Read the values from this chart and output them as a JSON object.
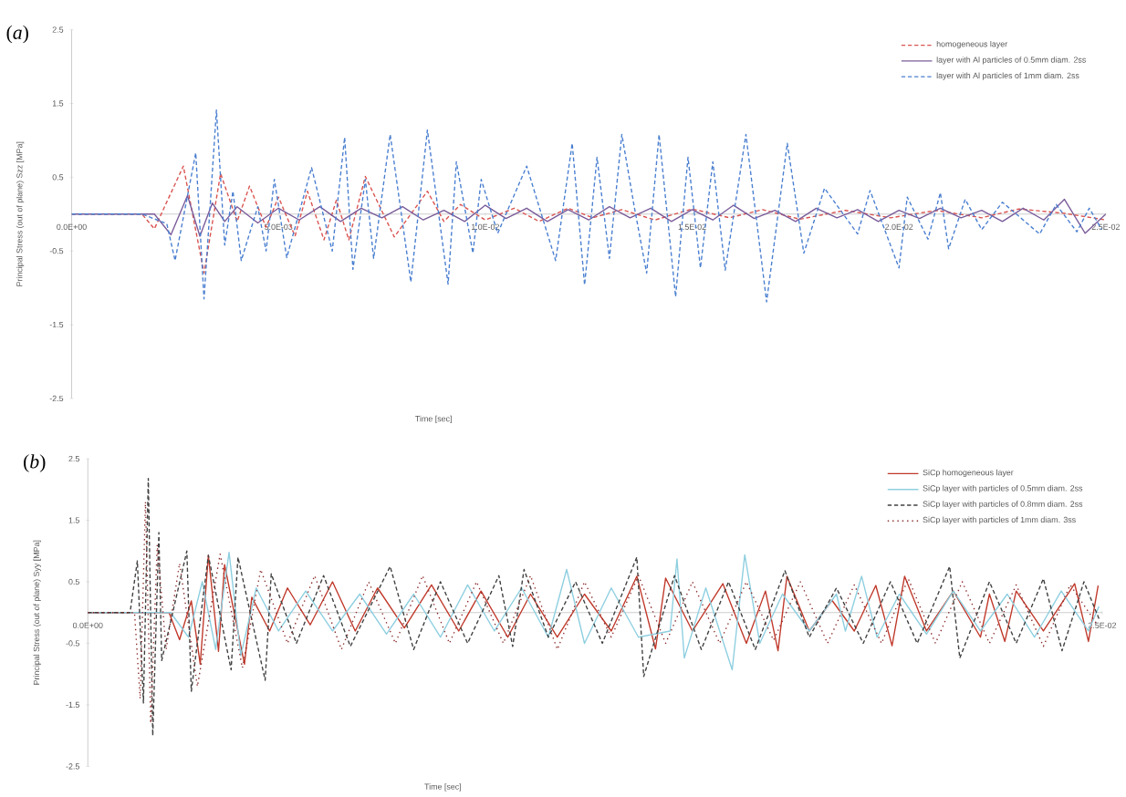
{
  "chart_data": [
    {
      "type": "line",
      "title": "(*a*)",
      "xlabel": "Time [sec]",
      "ylabel": "Principal Stress (out of plane) Szz [MPa]",
      "xlim": [
        0,
        0.025
      ],
      "ylim": [
        -2.5,
        2.5
      ],
      "yticks": [
        -2.5,
        -1.5,
        -0.5,
        0.5,
        1.5,
        2.5
      ],
      "xticks": [
        {
          "value": 0,
          "label": "0.0E+00"
        },
        {
          "value": 0.005,
          "label": "5.0E-03"
        },
        {
          "value": 0.01,
          "label": "1.0E-02"
        },
        {
          "value": 0.015,
          "label": "1.5E-02"
        },
        {
          "value": 0.02,
          "label": "2.0E-02"
        },
        {
          "value": 0.025,
          "label": "2.5E-02"
        }
      ],
      "legend": "top right",
      "series": [
        {
          "name": "homogeneous layer",
          "color": "#d9534f",
          "line_style": "dashed",
          "x": [
            0,
            0.0017,
            0.002,
            0.0027,
            0.0032,
            0.0036,
            0.004,
            0.0043,
            0.0047,
            0.005,
            0.0054,
            0.0057,
            0.0061,
            0.0064,
            0.0067,
            0.0071,
            0.0078,
            0.0086,
            0.009,
            0.0094,
            0.01,
            0.0107,
            0.0113,
            0.012,
            0.0126,
            0.0133,
            0.0141,
            0.015,
            0.0159,
            0.0167,
            0.0176,
            0.0187,
            0.0198,
            0.0209,
            0.022,
            0.0229,
            0.024,
            0.025
          ],
          "values": [
            0,
            0,
            -0.2,
            0.65,
            -0.8,
            0.55,
            -0.1,
            0.38,
            -0.18,
            0.23,
            -0.3,
            0.31,
            -0.35,
            0.19,
            -0.35,
            0.51,
            -0.31,
            0.31,
            -0.1,
            0.13,
            -0.08,
            0.08,
            -0.1,
            0.08,
            -0.05,
            0.06,
            -0.08,
            0.07,
            -0.05,
            0.06,
            -0.07,
            0.05,
            -0.05,
            0.05,
            -0.05,
            0.07,
            0.01,
            -0.08
          ]
        },
        {
          "name": "layer with Al particles of 0.5mm diam. 2ss",
          "color": "#7a5c9a",
          "line_style": "solid",
          "x": [
            0,
            0.002,
            0.0024,
            0.0028,
            0.0031,
            0.0034,
            0.0037,
            0.004,
            0.0045,
            0.005,
            0.0055,
            0.006,
            0.0065,
            0.007,
            0.0075,
            0.008,
            0.0085,
            0.009,
            0.0095,
            0.01,
            0.0105,
            0.011,
            0.0115,
            0.012,
            0.0125,
            0.013,
            0.0135,
            0.014,
            0.0145,
            0.015,
            0.0155,
            0.016,
            0.0165,
            0.017,
            0.0175,
            0.018,
            0.0185,
            0.019,
            0.0195,
            0.02,
            0.0205,
            0.021,
            0.0215,
            0.022,
            0.0225,
            0.023,
            0.0235,
            0.024,
            0.0245,
            0.025
          ],
          "values": [
            0,
            0,
            -0.28,
            0.25,
            -0.3,
            0.15,
            -0.1,
            0.1,
            -0.12,
            0.08,
            -0.08,
            0.1,
            -0.1,
            0.08,
            -0.05,
            0.1,
            -0.08,
            0.05,
            -0.1,
            0.12,
            -0.06,
            0.08,
            -0.1,
            0.06,
            -0.08,
            0.1,
            -0.05,
            0.08,
            -0.1,
            0.06,
            -0.08,
            0.12,
            -0.06,
            0.05,
            -0.1,
            0.08,
            -0.05,
            0.06,
            -0.1,
            0.05,
            -0.06,
            0.08,
            -0.05,
            0.05,
            -0.1,
            0.08,
            -0.08,
            0.2,
            -0.26,
            0
          ]
        },
        {
          "name": "layer with Al particles of 1mm diam. 2ss",
          "color": "#4a7fd0",
          "line_style": "dashed",
          "x": [
            0,
            0.0017,
            0.0023,
            0.0025,
            0.003,
            0.0032,
            0.0035,
            0.0037,
            0.0039,
            0.0041,
            0.0045,
            0.0047,
            0.0049,
            0.0052,
            0.0058,
            0.0063,
            0.0066,
            0.0068,
            0.0071,
            0.0073,
            0.0077,
            0.0082,
            0.0086,
            0.0091,
            0.0093,
            0.0097,
            0.0099,
            0.0103,
            0.011,
            0.0117,
            0.0121,
            0.0124,
            0.0127,
            0.013,
            0.0133,
            0.0136,
            0.0139,
            0.0142,
            0.0146,
            0.0149,
            0.0152,
            0.0155,
            0.0158,
            0.0163,
            0.0168,
            0.0173,
            0.0177,
            0.0182,
            0.019,
            0.0193,
            0.02,
            0.0202,
            0.0207,
            0.021,
            0.0212,
            0.0216,
            0.022,
            0.0225,
            0.0234,
            0.0238,
            0.0243,
            0.0246,
            0.0249
          ],
          "values": [
            0,
            0,
            -0.13,
            -0.63,
            0.83,
            -1.15,
            1.41,
            -0.42,
            0.31,
            -0.63,
            0.1,
            -0.5,
            0.47,
            -0.59,
            0.63,
            -0.5,
            1.04,
            -0.75,
            0.47,
            -0.6,
            1.08,
            -0.92,
            1.14,
            -0.95,
            0.71,
            -0.53,
            0.47,
            -0.26,
            0.65,
            -0.63,
            0.96,
            -0.96,
            0.77,
            -0.6,
            1.08,
            0.1,
            -0.8,
            1.08,
            -1.12,
            0.77,
            -0.73,
            0.71,
            -0.76,
            1.08,
            -1.19,
            0.96,
            -0.53,
            0.35,
            -0.27,
            0.32,
            -0.73,
            0.23,
            -0.34,
            0.29,
            -0.47,
            0.2,
            -0.21,
            0.16,
            -0.27,
            0.13,
            -0.24,
            0.08,
            -0.21
          ]
        }
      ]
    },
    {
      "type": "line",
      "title": "(*b*)",
      "xlabel": "Time [sec]",
      "ylabel": "Principal Stress (out of plane) Syy [MPa]",
      "xlim": [
        0,
        0.025
      ],
      "ylim": [
        -2.5,
        2.5
      ],
      "yticks": [
        -2.5,
        -1.5,
        -0.5,
        0.5,
        1.5,
        2.5
      ],
      "xticks": [
        {
          "value": 0,
          "label": "0.0E+00"
        },
        {
          "value": 0.025,
          "label": "2.5E-02"
        }
      ],
      "legend": "top right",
      "series": [
        {
          "name": "SiCp homogeneous layer",
          "color": "#c0392b",
          "line_style": "solid",
          "x": [
            0,
            0.002,
            0.00226,
            0.00255,
            0.00277,
            0.00297,
            0.00322,
            0.00337,
            0.00386,
            0.00404,
            0.00448,
            0.00492,
            0.00548,
            0.00603,
            0.00659,
            0.00714,
            0.0078,
            0.00847,
            0.00914,
            0.00969,
            0.01035,
            0.01091,
            0.01157,
            0.01224,
            0.0129,
            0.01353,
            0.01399,
            0.01424,
            0.0149,
            0.01565,
            0.01623,
            0.0167,
            0.01701,
            0.01723,
            0.01778,
            0.01834,
            0.01889,
            0.01942,
            0.01982,
            0.02013,
            0.02067,
            0.02133,
            0.022,
            0.02222,
            0.0226,
            0.02288,
            0.02355,
            0.02432,
            0.02466,
            0.0249
          ],
          "values": [
            0,
            0,
            -0.44,
            0.19,
            -0.84,
            0.93,
            -0.63,
            0.78,
            -0.84,
            0.25,
            -0.3,
            0.4,
            -0.2,
            0.5,
            -0.3,
            0.4,
            -0.25,
            0.45,
            -0.3,
            0.35,
            -0.4,
            0.3,
            -0.4,
            0.3,
            -0.3,
            0.59,
            -0.59,
            0.56,
            -0.3,
            0.47,
            -0.5,
            0.35,
            -0.62,
            0.59,
            -0.3,
            0.2,
            -0.3,
            0.44,
            -0.54,
            0.59,
            -0.3,
            0.35,
            -0.4,
            0.3,
            -0.47,
            0.35,
            -0.3,
            0.47,
            -0.47,
            0.44
          ]
        },
        {
          "name": "SiCp layer with particles of 0.5mm diam. 2ss",
          "color": "#8ecfe0",
          "line_style": "solid",
          "x": [
            0,
            0.00204,
            0.00248,
            0.00282,
            0.00315,
            0.00348,
            0.00377,
            0.00415,
            0.0047,
            0.00537,
            0.00603,
            0.0067,
            0.00736,
            0.00803,
            0.00869,
            0.00936,
            0.01002,
            0.01069,
            0.01135,
            0.0118,
            0.01224,
            0.0129,
            0.01357,
            0.01435,
            0.01452,
            0.0147,
            0.01523,
            0.01588,
            0.01619,
            0.01656,
            0.01712,
            0.01778,
            0.01845,
            0.01867,
            0.01907,
            0.01945,
            0.02,
            0.02067,
            0.02133,
            0.022,
            0.02266,
            0.02333,
            0.02399,
            0.02466,
            0.02492
          ],
          "values": [
            0,
            0,
            -0.4,
            0.5,
            -0.6,
            0.98,
            -0.7,
            0.4,
            -0.3,
            0.35,
            -0.3,
            0.3,
            -0.35,
            0.3,
            -0.4,
            0.45,
            -0.3,
            0.4,
            -0.4,
            0.7,
            -0.5,
            0.4,
            -0.4,
            -0.3,
            0.87,
            -0.74,
            0.4,
            -0.93,
            0.94,
            -0.5,
            0.3,
            -0.3,
            0.3,
            -0.3,
            0.59,
            -0.4,
            0.3,
            -0.35,
            0.35,
            -0.3,
            0.3,
            -0.4,
            0.35,
            -0.3,
            0.1
          ]
        },
        {
          "name": "SiCp layer with particles of 0.8mm diam. 2ss",
          "color": "#404040",
          "line_style": "dashed",
          "x": [
            0,
            0.00104,
            0.00122,
            0.00137,
            0.00149,
            0.0016,
            0.00175,
            0.00182,
            0.00244,
            0.00255,
            0.00297,
            0.00353,
            0.0037,
            0.00437,
            0.00452,
            0.00514,
            0.00581,
            0.00647,
            0.00745,
            0.00803,
            0.00869,
            0.00936,
            0.01013,
            0.01047,
            0.01075,
            0.01135,
            0.01202,
            0.01268,
            0.01353,
            0.0137,
            0.01446,
            0.01512,
            0.01579,
            0.01645,
            0.01718,
            0.01778,
            0.01845,
            0.01911,
            0.01978,
            0.02044,
            0.02124,
            0.02149,
            0.02222,
            0.02288,
            0.02355,
            0.02401,
            0.02455,
            0.02492
          ],
          "values": [
            0,
            0,
            0.84,
            -1.47,
            2.18,
            -2.0,
            1.3,
            -0.78,
            1.0,
            -1.28,
            0.93,
            -0.93,
            0.9,
            -1.1,
            0.63,
            -0.5,
            0.6,
            -0.55,
            0.75,
            -0.6,
            0.5,
            -0.5,
            0.6,
            -0.55,
            0.7,
            -0.4,
            0.5,
            -0.5,
            0.9,
            -1.04,
            0.6,
            -0.6,
            0.5,
            -0.6,
            0.68,
            -0.4,
            0.4,
            -0.5,
            0.5,
            -0.5,
            0.75,
            -0.74,
            0.5,
            -0.5,
            0.55,
            -0.62,
            0.5,
            -0.1
          ]
        },
        {
          "name": "SiCp layer with particles of 1mm diam. 3ss",
          "color": "#8b2a2a",
          "line_style": "dotted",
          "x": [
            0,
            0.00115,
            0.00129,
            0.00142,
            0.00155,
            0.00171,
            0.00193,
            0.00226,
            0.0027,
            0.00326,
            0.00381,
            0.00426,
            0.00492,
            0.00559,
            0.00625,
            0.00692,
            0.00758,
            0.00825,
            0.00891,
            0.00958,
            0.01024,
            0.01091,
            0.01157,
            0.01224,
            0.0129,
            0.01357,
            0.01424,
            0.0149,
            0.01557,
            0.01623,
            0.0169,
            0.01756,
            0.01823,
            0.01889,
            0.01956,
            0.02022,
            0.02089,
            0.02155,
            0.02222,
            0.02288,
            0.02355,
            0.02421,
            0.02488
          ],
          "values": [
            0,
            0,
            -1.4,
            1.8,
            -1.8,
            1.1,
            -0.6,
            0.8,
            -1.2,
            0.95,
            -0.9,
            0.7,
            -0.5,
            0.6,
            -0.6,
            0.5,
            -0.5,
            0.6,
            -0.5,
            0.5,
            -0.5,
            0.6,
            -0.6,
            0.5,
            -0.4,
            0.6,
            -0.5,
            0.5,
            -0.5,
            0.5,
            -0.45,
            0.5,
            -0.5,
            0.45,
            -0.5,
            0.55,
            -0.5,
            0.5,
            -0.5,
            0.45,
            -0.55,
            0.45,
            -0.2
          ]
        }
      ]
    }
  ]
}
